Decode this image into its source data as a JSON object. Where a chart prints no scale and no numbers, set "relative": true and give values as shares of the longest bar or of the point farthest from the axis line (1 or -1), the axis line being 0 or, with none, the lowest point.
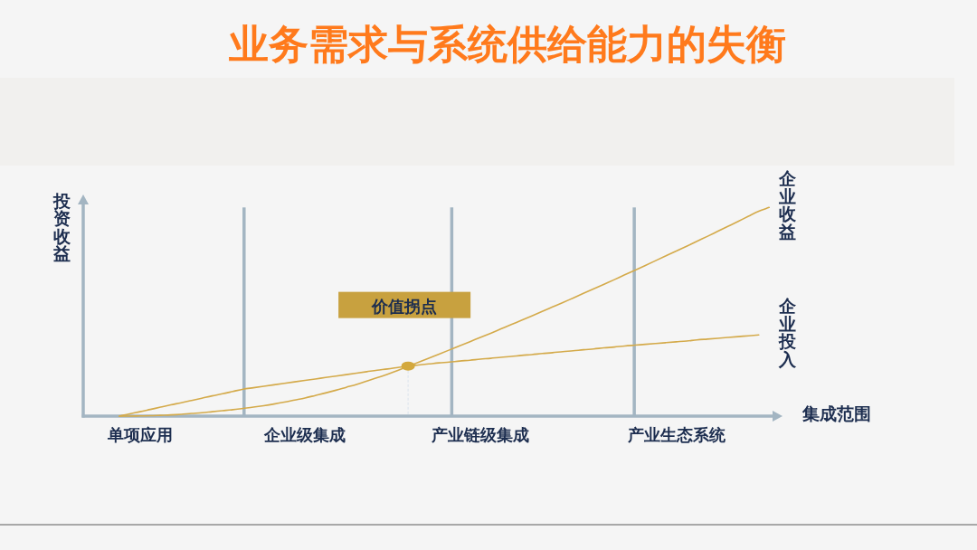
{
  "chart_data": {
    "type": "line",
    "title": "业务需求与系统供给能力的失衡",
    "xlabel": "集成范围",
    "ylabel": "投资收益",
    "relative": true,
    "categories": [
      null,
      null,
      "单项应用",
      null,
      null,
      null,
      null,
      null,
      null,
      null,
      null,
      null,
      null,
      null,
      null,
      null,
      null,
      null,
      "企业级集成",
      null,
      null,
      null,
      null,
      null,
      null,
      null,
      null,
      null,
      null,
      null,
      null,
      null,
      null,
      null,
      null,
      "产业链级集成",
      null,
      null,
      null,
      null,
      null,
      null,
      null,
      null,
      null,
      null,
      null,
      null,
      null,
      null,
      null,
      null,
      null,
      null,
      "产业生态系统",
      null,
      null,
      null,
      null,
      null,
      null,
      null,
      null,
      null
    ],
    "series": [
      {
        "name": "企业收益",
        "color": "#d4aa4a",
        "values": [
          0,
          0,
          0.001,
          0.002,
          0.004,
          0.006,
          0.009,
          0.013,
          0.016,
          0.021,
          0.026,
          0.031,
          0.037,
          0.043,
          0.05,
          0.058,
          0.067,
          0.077,
          0.087,
          0.099,
          0.111,
          0.124,
          0.138,
          0.152,
          0.168,
          0.184,
          0.201,
          0.219,
          0.238,
          0.258,
          0.277,
          0.297,
          0.317,
          0.337,
          0.357,
          0.377,
          0.397,
          0.418,
          0.439,
          0.459,
          0.48,
          0.502,
          0.523,
          0.544,
          0.566,
          0.588,
          0.61,
          0.632,
          0.654,
          0.677,
          0.699,
          0.722,
          0.745,
          0.768,
          0.791,
          0.814,
          0.838,
          0.861,
          0.885,
          0.909,
          0.933,
          0.958,
          0.982,
          1
        ]
      },
      {
        "name": "企业投入",
        "color": "#d4aa4a",
        "values": [
          0,
          0.011,
          0.021,
          0.032,
          0.043,
          0.054,
          0.064,
          0.075,
          0.086,
          0.097,
          0.107,
          0.118,
          0.129,
          0.136,
          0.143,
          0.15,
          0.157,
          0.164,
          0.171,
          0.178,
          0.185,
          0.192,
          0.199,
          0.206,
          0.213,
          0.22,
          0.226,
          0.233,
          0.24,
          0.245,
          0.25,
          0.255,
          0.259,
          0.264,
          0.268,
          0.273,
          0.277,
          0.282,
          0.286,
          0.291,
          0.295,
          0.3,
          0.304,
          0.309,
          0.313,
          0.318,
          0.322,
          0.327,
          0.331,
          0.336,
          0.34,
          0.344,
          0.348,
          0.352,
          0.356,
          0.36,
          0.365,
          0.369,
          0.373,
          0.377,
          0.381,
          0.385,
          0.389,
          null
        ]
      },
      {
        "type": "scatter",
        "color": "#d3a83d",
        "marker": "circle",
        "values": [
          null,
          null,
          null,
          null,
          null,
          null,
          null,
          null,
          null,
          null,
          null,
          null,
          null,
          null,
          null,
          null,
          null,
          null,
          null,
          null,
          null,
          null,
          null,
          null,
          null,
          null,
          null,
          null,
          0.24,
          null,
          null,
          null,
          null,
          null,
          null,
          null,
          null,
          null,
          null,
          null,
          null,
          null,
          null,
          null,
          null,
          null,
          null,
          null,
          null,
          null,
          null,
          null,
          null,
          null,
          null,
          null,
          null,
          null,
          null,
          null,
          null,
          null,
          null,
          null
        ]
      }
    ],
    "annotations": [
      "价值拐点"
    ],
    "line_style": "solid"
  }
}
